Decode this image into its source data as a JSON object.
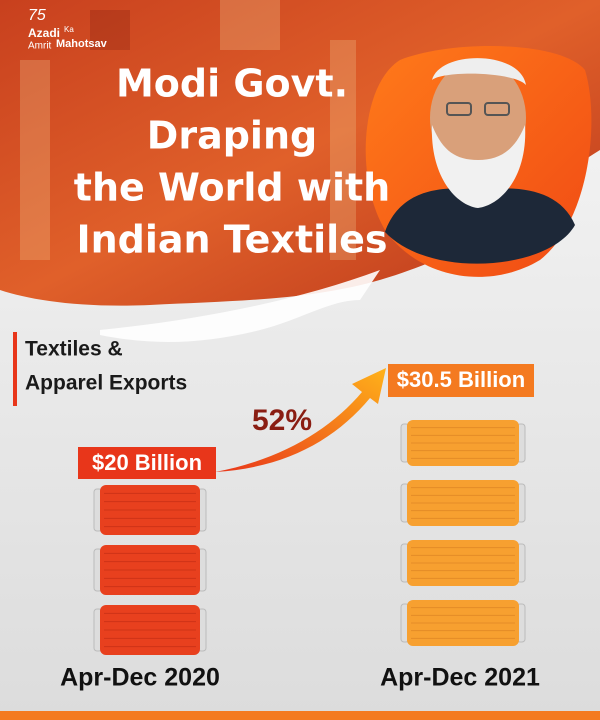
{
  "logo": {
    "number": "75",
    "words": [
      "Azadi",
      "Ka",
      "Amrit",
      "Mahotsav"
    ]
  },
  "title_lines": [
    "Modi Govt.",
    "Draping",
    "the World with",
    "Indian Textiles"
  ],
  "subtitle_lines": [
    "Textiles &",
    "Apparel Exports"
  ],
  "growth": "52%",
  "periods": [
    {
      "value": "$20 Billion",
      "label": "Apr-Dec 2020"
    },
    {
      "value": "$30.5 Billion",
      "label": "Apr-Dec 2021"
    }
  ]
}
